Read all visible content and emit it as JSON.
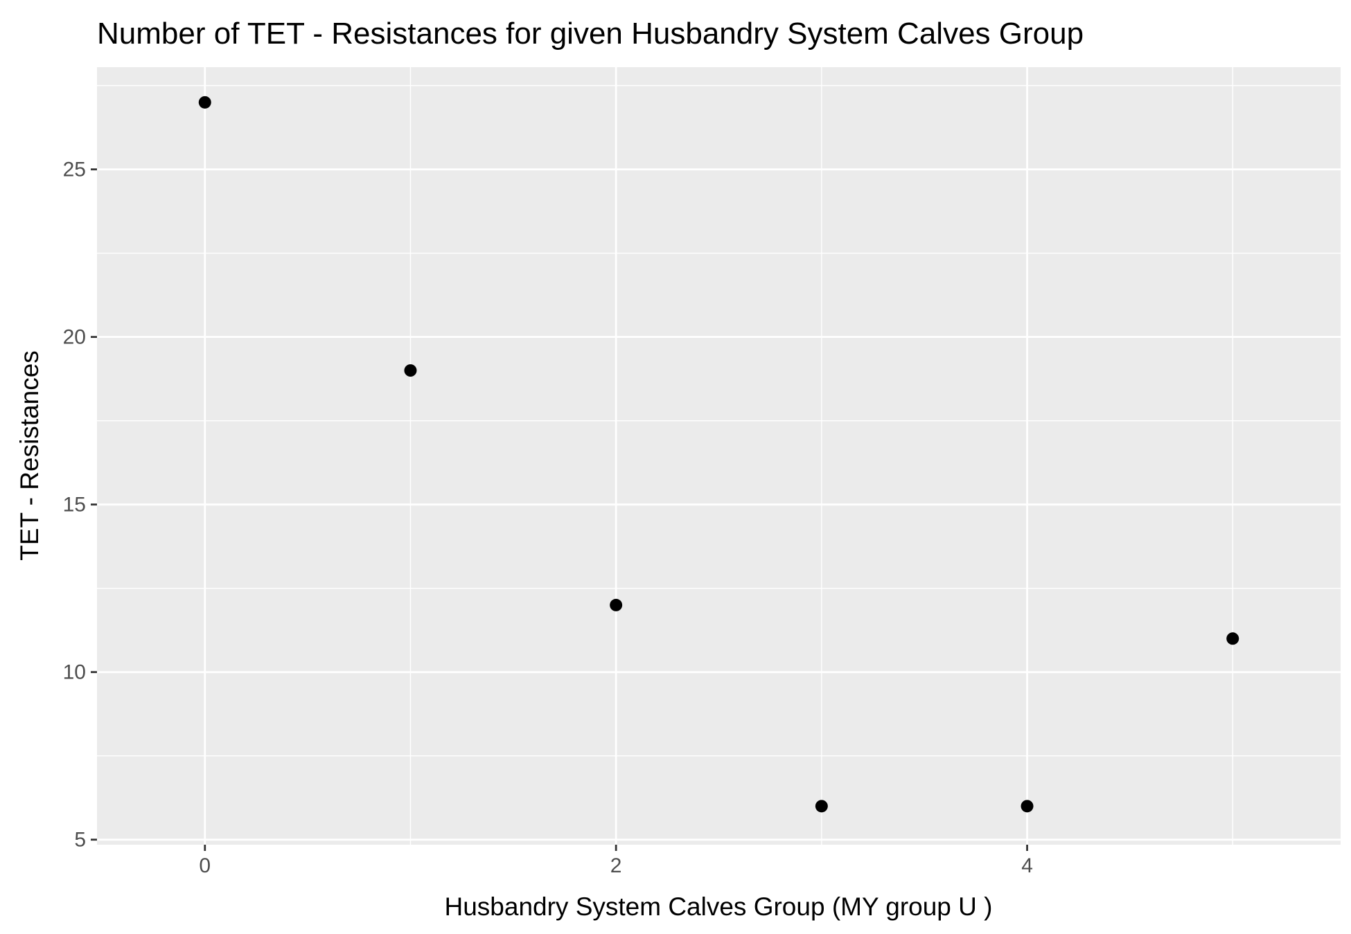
{
  "chart_data": {
    "type": "scatter",
    "title": "Number of TET - Resistances for given Husbandry System Calves Group",
    "xlabel": "Husbandry System Calves Group     (MY group U )",
    "ylabel": "TET - Resistances",
    "x": [
      0,
      1,
      2,
      3,
      4,
      5
    ],
    "y": [
      27,
      19,
      12,
      6,
      6,
      11
    ],
    "xlim": [
      -0.525,
      5.525
    ],
    "ylim": [
      4.85,
      28.05
    ],
    "x_ticks": [
      0,
      2,
      4
    ],
    "x_tick_labels": [
      "0",
      "2",
      "4"
    ],
    "x_minor_ticks": [
      1,
      3,
      5
    ],
    "y_ticks": [
      5,
      10,
      15,
      20,
      25
    ],
    "y_tick_labels": [
      "5",
      "10",
      "15",
      "20",
      "25"
    ],
    "y_minor_ticks": [
      7.5,
      12.5,
      17.5,
      22.5,
      27.5
    ],
    "grid": true,
    "legend": false,
    "colors": {
      "panel_background": "#ebebeb",
      "grid_line": "#ffffff",
      "point": "#000000",
      "tick_mark": "#333333",
      "tick_label": "#4d4d4d"
    }
  }
}
